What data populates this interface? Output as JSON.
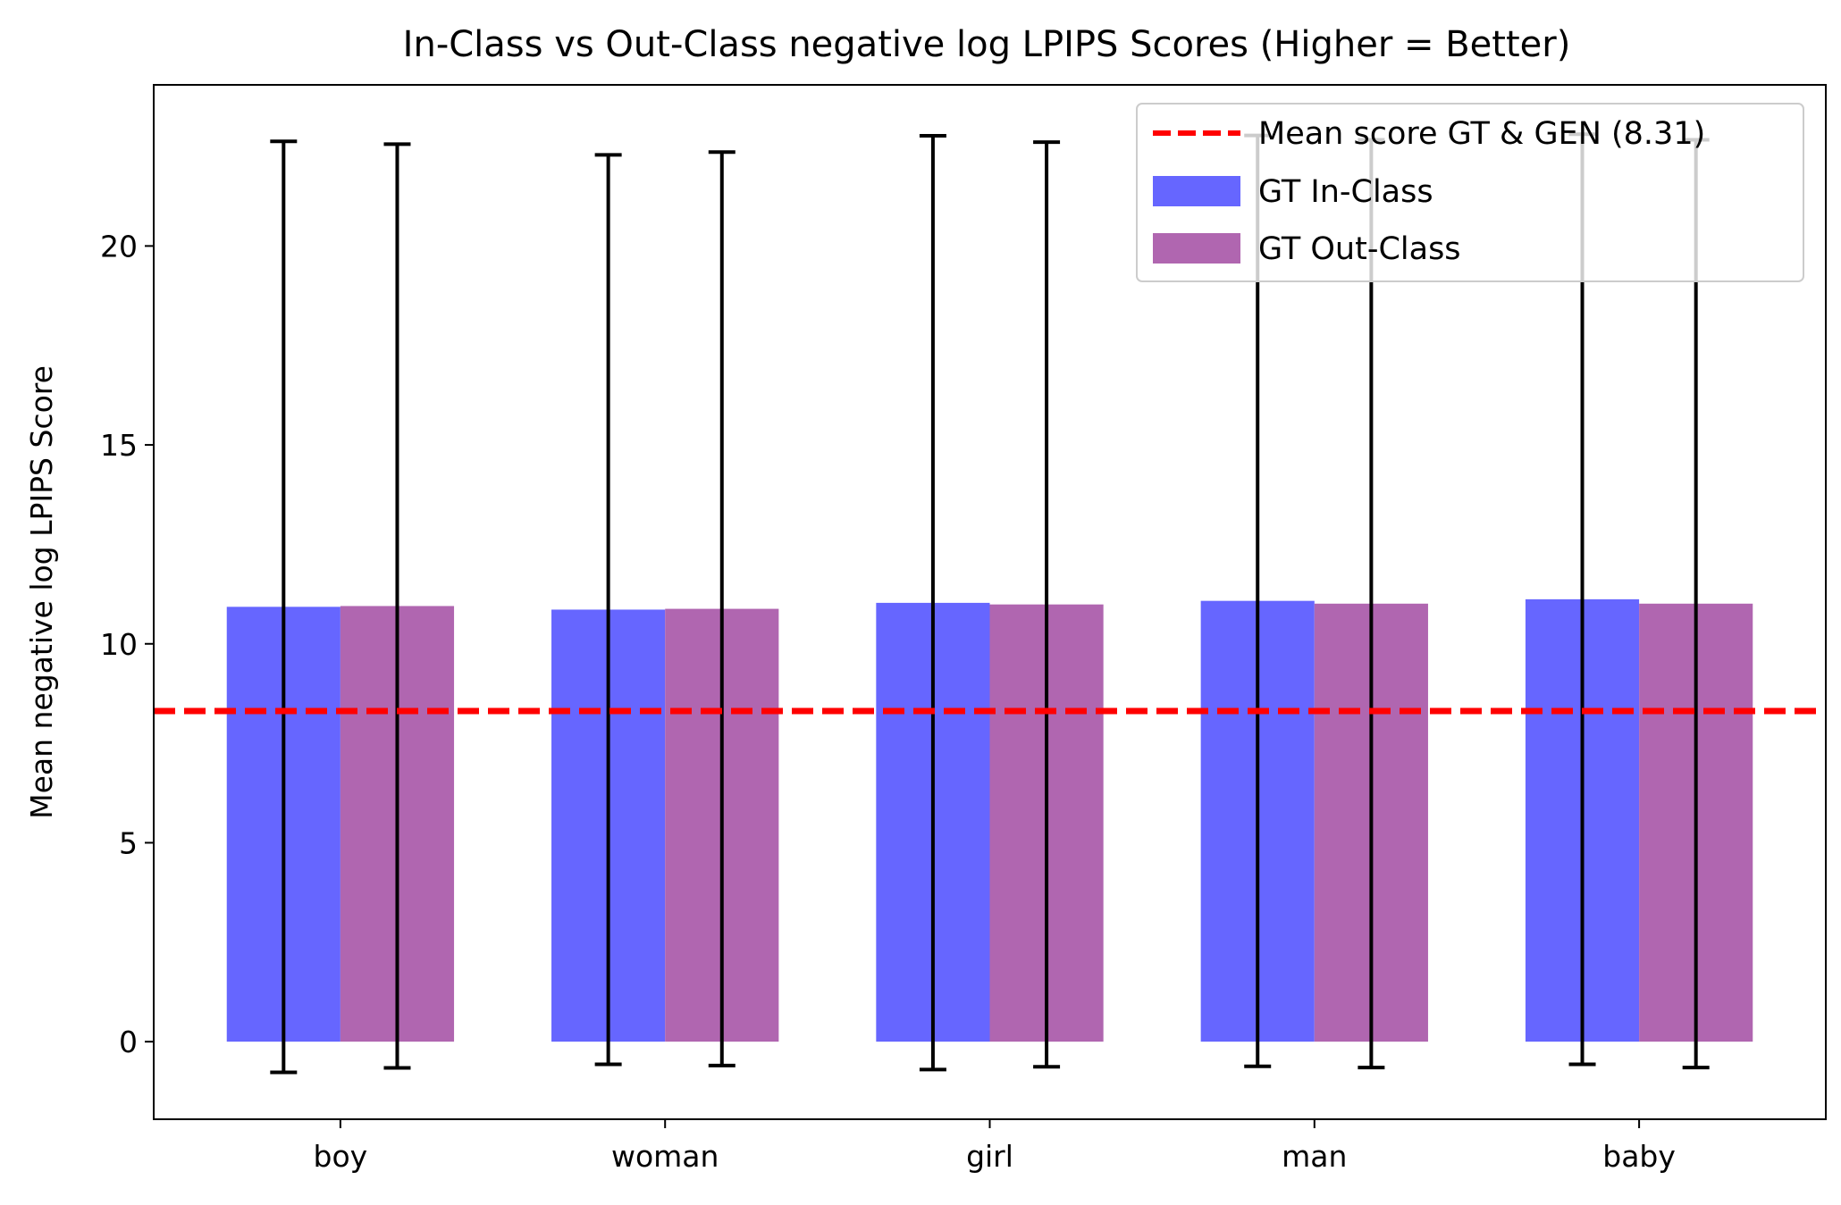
{
  "chart_data": {
    "type": "bar",
    "title": "In-Class vs Out-Class negative log LPIPS Scores (Higher = Better)",
    "xlabel": "",
    "ylabel": "Mean negative log LPIPS Score",
    "categories": [
      "boy",
      "woman",
      "girl",
      "man",
      "baby"
    ],
    "series": [
      {
        "name": "GT In-Class",
        "color": "#6666ff",
        "values": [
          10.93,
          10.86,
          11.03,
          11.08,
          11.12
        ],
        "err_low": [
          -0.77,
          -0.57,
          -0.7,
          -0.62,
          -0.57
        ],
        "err_high": [
          22.63,
          22.29,
          22.77,
          22.78,
          22.81
        ]
      },
      {
        "name": "GT Out-Class",
        "color": "#b066b0",
        "values": [
          10.95,
          10.88,
          10.99,
          11.01,
          11.01
        ],
        "err_low": [
          -0.66,
          -0.6,
          -0.63,
          -0.65,
          -0.65
        ],
        "err_high": [
          22.56,
          22.36,
          22.61,
          22.67,
          22.67
        ]
      }
    ],
    "reference_line": {
      "label": "Mean score GT & GEN (8.31)",
      "value": 8.31,
      "color": "#ff0000",
      "style": "dashed"
    },
    "yticks": [
      0,
      5,
      10,
      15,
      20
    ],
    "ylim": [
      -1.95,
      24.05
    ],
    "grid": false,
    "legend_position": "top-right"
  }
}
